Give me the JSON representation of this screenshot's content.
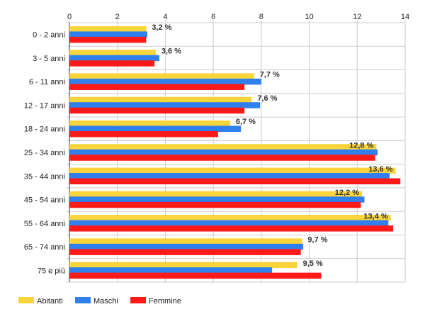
{
  "chart_data": {
    "type": "bar",
    "orientation": "horizontal",
    "categories": [
      "0 - 2 anni",
      "3 - 5 anni",
      "6 - 11 anni",
      "12 - 17 anni",
      "18 - 24 anni",
      "25 - 34 anni",
      "35 - 44 anni",
      "45 - 54 anni",
      "55 - 64 anni",
      "65 - 74 anni",
      "75 e più"
    ],
    "series": [
      {
        "name": "Abitanti",
        "color": "#f9d43a",
        "values": [
          3.2,
          3.6,
          7.7,
          7.6,
          6.7,
          12.8,
          13.6,
          12.2,
          13.4,
          9.7,
          9.5
        ]
      },
      {
        "name": "Maschi",
        "color": "#2f80ed",
        "values": [
          3.25,
          3.75,
          8.0,
          7.95,
          7.15,
          12.85,
          13.35,
          12.3,
          13.3,
          9.75,
          8.45
        ]
      },
      {
        "name": "Femmine",
        "color": "#ff1a1a",
        "values": [
          3.2,
          3.55,
          7.3,
          7.3,
          6.2,
          12.75,
          13.8,
          12.15,
          13.5,
          9.65,
          10.5
        ]
      }
    ],
    "data_labels": [
      "3,2 %",
      "3,6 %",
      "7,7 %",
      "7,6 %",
      "6,7 %",
      "12,8 %",
      "13,6 %",
      "12,2 %",
      "13,4 %",
      "9,7 %",
      "9,5 %"
    ],
    "xlim": [
      0,
      14
    ],
    "x_ticks": [
      0,
      2,
      4,
      6,
      8,
      10,
      12,
      14
    ],
    "x_axis_position": "top",
    "grid": true,
    "legend_position": "bottom-left"
  }
}
